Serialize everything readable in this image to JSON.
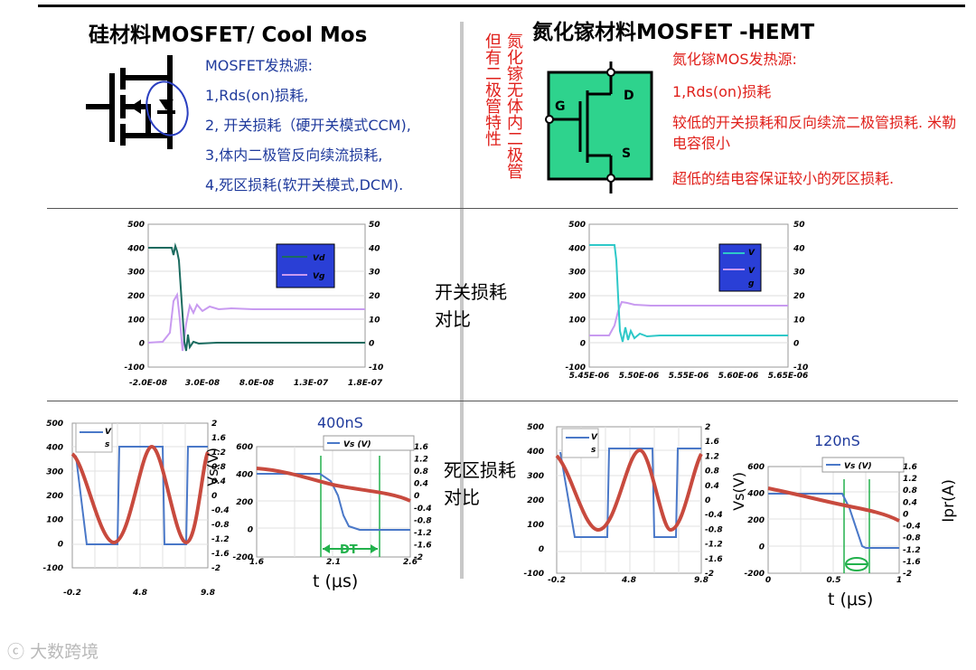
{
  "left": {
    "title": "硅材料MOSFET/ Cool Mos",
    "heat_title": "MOSFET发热源:",
    "items": [
      "1,Rds(on)损耗,",
      "2, 开关损耗（硬开关模式CCM),",
      "3,体内二极管反向续流损耗,",
      "4,死区损耗(软开关模式,DCM)."
    ]
  },
  "right": {
    "title": "氮化镓材料MOSFET -HEMT",
    "note_col1": "氮化镓无体内二极管",
    "note_col2": "但有二极管特性",
    "heat_title": "氮化镓MOS发热源:",
    "items": [
      "1,Rds(on)损耗",
      "较低的开关损耗和反向续流二极管损耗. 米勒电容很小",
      "超低的结电容保证较小的死区损耗."
    ],
    "pins": {
      "g": "G",
      "d": "D",
      "s": "S"
    }
  },
  "labels": {
    "switch_loss": "开关损耗对比",
    "dead_loss": "死区损耗对比",
    "dt_400": "400nS",
    "dt_120": "120nS",
    "dt_mark": "DT",
    "t_axis": "t (μs)",
    "vs_axis": "Vs(V)",
    "ipr_axis": "Ipr(A)",
    "vs_legend": "Vs (V)"
  },
  "chart_data": [
    {
      "type": "line",
      "id": "si_switch",
      "x_ticks": [
        "-2.0E-08",
        "3.0E-08",
        "8.0E-08",
        "1.3E-07",
        "1.8E-07"
      ],
      "yleft_ticks": [
        "500",
        "400",
        "300",
        "200",
        "100",
        "0",
        "-100"
      ],
      "yright_ticks": [
        "50",
        "40",
        "30",
        "20",
        "10",
        "0",
        "-10"
      ],
      "ylim_left": [
        -100,
        500
      ],
      "ylim_right": [
        -10,
        50
      ],
      "legend": [
        "Vd",
        "Vg"
      ],
      "colors": {
        "vd": "#1b6b5f",
        "vg": "#c89af0",
        "legend_bg": "#2a3fd6"
      }
    },
    {
      "type": "line",
      "id": "gan_switch",
      "x_ticks": [
        "5.45E-06",
        "5.50E-06",
        "5.55E-06",
        "5.60E-06",
        "5.65E-06"
      ],
      "yleft_ticks": [
        "500",
        "400",
        "300",
        "200",
        "100",
        "0",
        "-100"
      ],
      "yright_ticks": [
        "50",
        "40",
        "30",
        "20",
        "10",
        "0",
        "-10"
      ],
      "ylim_left": [
        -100,
        500
      ],
      "ylim_right": [
        -10,
        50
      ],
      "legend": [
        "V",
        "V",
        "g"
      ],
      "colors": {
        "vd": "#2ec8c8",
        "vg": "#c89af0",
        "legend_bg": "#2a3fd6"
      }
    },
    {
      "type": "line",
      "id": "si_dead_full",
      "x_ticks": [
        "-0.2",
        "4.8",
        "9.8"
      ],
      "yleft_ticks": [
        "500",
        "400",
        "300",
        "200",
        "100",
        "0",
        "-100"
      ],
      "yright_ticks": [
        "2",
        "1.6",
        "1.2",
        "0.8",
        "0.4",
        "0",
        "-0.4",
        "-0.8",
        "-1.2",
        "-1.6",
        "-2"
      ],
      "legend": [
        "V",
        "s"
      ],
      "colors": {
        "vs": "#4a78c8",
        "ipr": "#c84a3e"
      }
    },
    {
      "type": "line",
      "id": "si_dead_zoom",
      "x_ticks": [
        "1.6",
        "2.1",
        "2.6"
      ],
      "yleft_ticks": [
        "600",
        "400",
        "200",
        "0",
        "-200"
      ],
      "yright_ticks": [
        "1.6",
        "1.2",
        "0.8",
        "0.4",
        "0",
        "-0.4",
        "-0.8",
        "-1.2",
        "-1.6",
        "-2"
      ]
    },
    {
      "type": "line",
      "id": "gan_dead_full",
      "x_ticks": [
        "-0.2",
        "4.8",
        "9.8"
      ],
      "yleft_ticks": [
        "500",
        "400",
        "300",
        "200",
        "100",
        "0",
        "-100"
      ],
      "yright_ticks": [
        "2",
        "1.6",
        "1.2",
        "0.8",
        "0.4",
        "0",
        "-0.4",
        "-0.8",
        "-1.2",
        "-1.6",
        "-2"
      ],
      "legend": [
        "V",
        "s"
      ]
    },
    {
      "type": "line",
      "id": "gan_dead_zoom",
      "x_ticks": [
        "0",
        "0.5",
        "1"
      ],
      "yleft_ticks": [
        "600",
        "400",
        "200",
        "0",
        "-200"
      ],
      "yright_ticks": [
        "1.6",
        "1.2",
        "0.8",
        "0.4",
        "0",
        "-0.4",
        "-0.8",
        "-1.2",
        "-1.6",
        "-2"
      ]
    }
  ],
  "watermark": "大数跨境"
}
